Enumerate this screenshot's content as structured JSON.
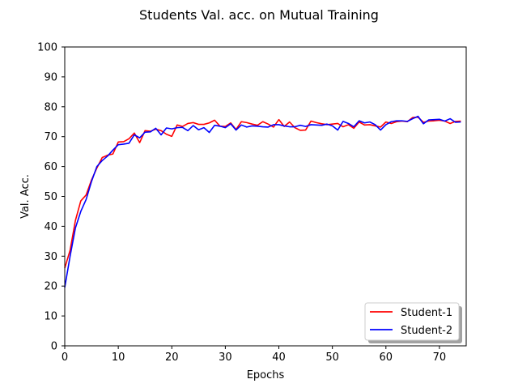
{
  "chart_data": {
    "type": "line",
    "title": "Students Val. acc. on Mutual Training",
    "xlabel": "Epochs",
    "ylabel": "Val. Acc.",
    "xlim": [
      0,
      75
    ],
    "ylim": [
      0,
      100
    ],
    "xticks": [
      0,
      10,
      20,
      30,
      40,
      50,
      60,
      70
    ],
    "yticks": [
      0,
      10,
      20,
      30,
      40,
      50,
      60,
      70,
      80,
      90,
      100
    ],
    "grid": false,
    "legend_position": "lower-right",
    "series": [
      {
        "name": "Student-1",
        "color": "#ff0000",
        "values": [
          26.0,
          32.0,
          42.0,
          48.5,
          50.5,
          55.5,
          59.5,
          63.0,
          63.8,
          64.2,
          68.2,
          68.3,
          69.3,
          71.2,
          68.0,
          72.0,
          71.8,
          72.5,
          72.0,
          70.8,
          70.1,
          73.9,
          73.4,
          74.4,
          74.7,
          74.1,
          74.1,
          74.6,
          75.5,
          73.5,
          73.4,
          74.6,
          72.4,
          75.0,
          74.7,
          74.2,
          73.8,
          75.0,
          74.2,
          73.2,
          75.7,
          73.4,
          74.9,
          73.0,
          72.1,
          72.2,
          75.2,
          74.7,
          74.3,
          74.0,
          74.2,
          74.4,
          73.3,
          74.0,
          72.8,
          74.9,
          73.9,
          74.0,
          73.6,
          73.2,
          74.9,
          74.4,
          75.0,
          75.2,
          75.0,
          76.4,
          76.5,
          74.8,
          75.2,
          75.3,
          75.5,
          75.2,
          74.4,
          75.1,
          75.2
        ]
      },
      {
        "name": "Student-2",
        "color": "#0000ff",
        "values": [
          19.5,
          30.0,
          39.5,
          45.0,
          49.0,
          55.0,
          60.0,
          62.0,
          63.5,
          65.5,
          67.3,
          67.5,
          67.8,
          70.6,
          69.6,
          71.5,
          71.6,
          72.8,
          70.6,
          72.9,
          72.6,
          73.0,
          73.1,
          72.0,
          73.7,
          72.3,
          73.0,
          71.4,
          73.8,
          73.5,
          73.0,
          74.3,
          72.2,
          73.9,
          73.2,
          73.6,
          73.5,
          73.3,
          73.2,
          74.0,
          74.0,
          73.6,
          73.3,
          73.3,
          73.8,
          73.4,
          74.0,
          73.9,
          73.8,
          74.2,
          73.6,
          72.2,
          75.1,
          74.4,
          73.3,
          75.3,
          74.6,
          74.9,
          74.0,
          72.2,
          74.0,
          75.0,
          75.3,
          75.3,
          75.1,
          76.0,
          76.8,
          74.3,
          75.6,
          75.7,
          75.8,
          75.2,
          76.0,
          74.8,
          74.9
        ]
      }
    ]
  }
}
